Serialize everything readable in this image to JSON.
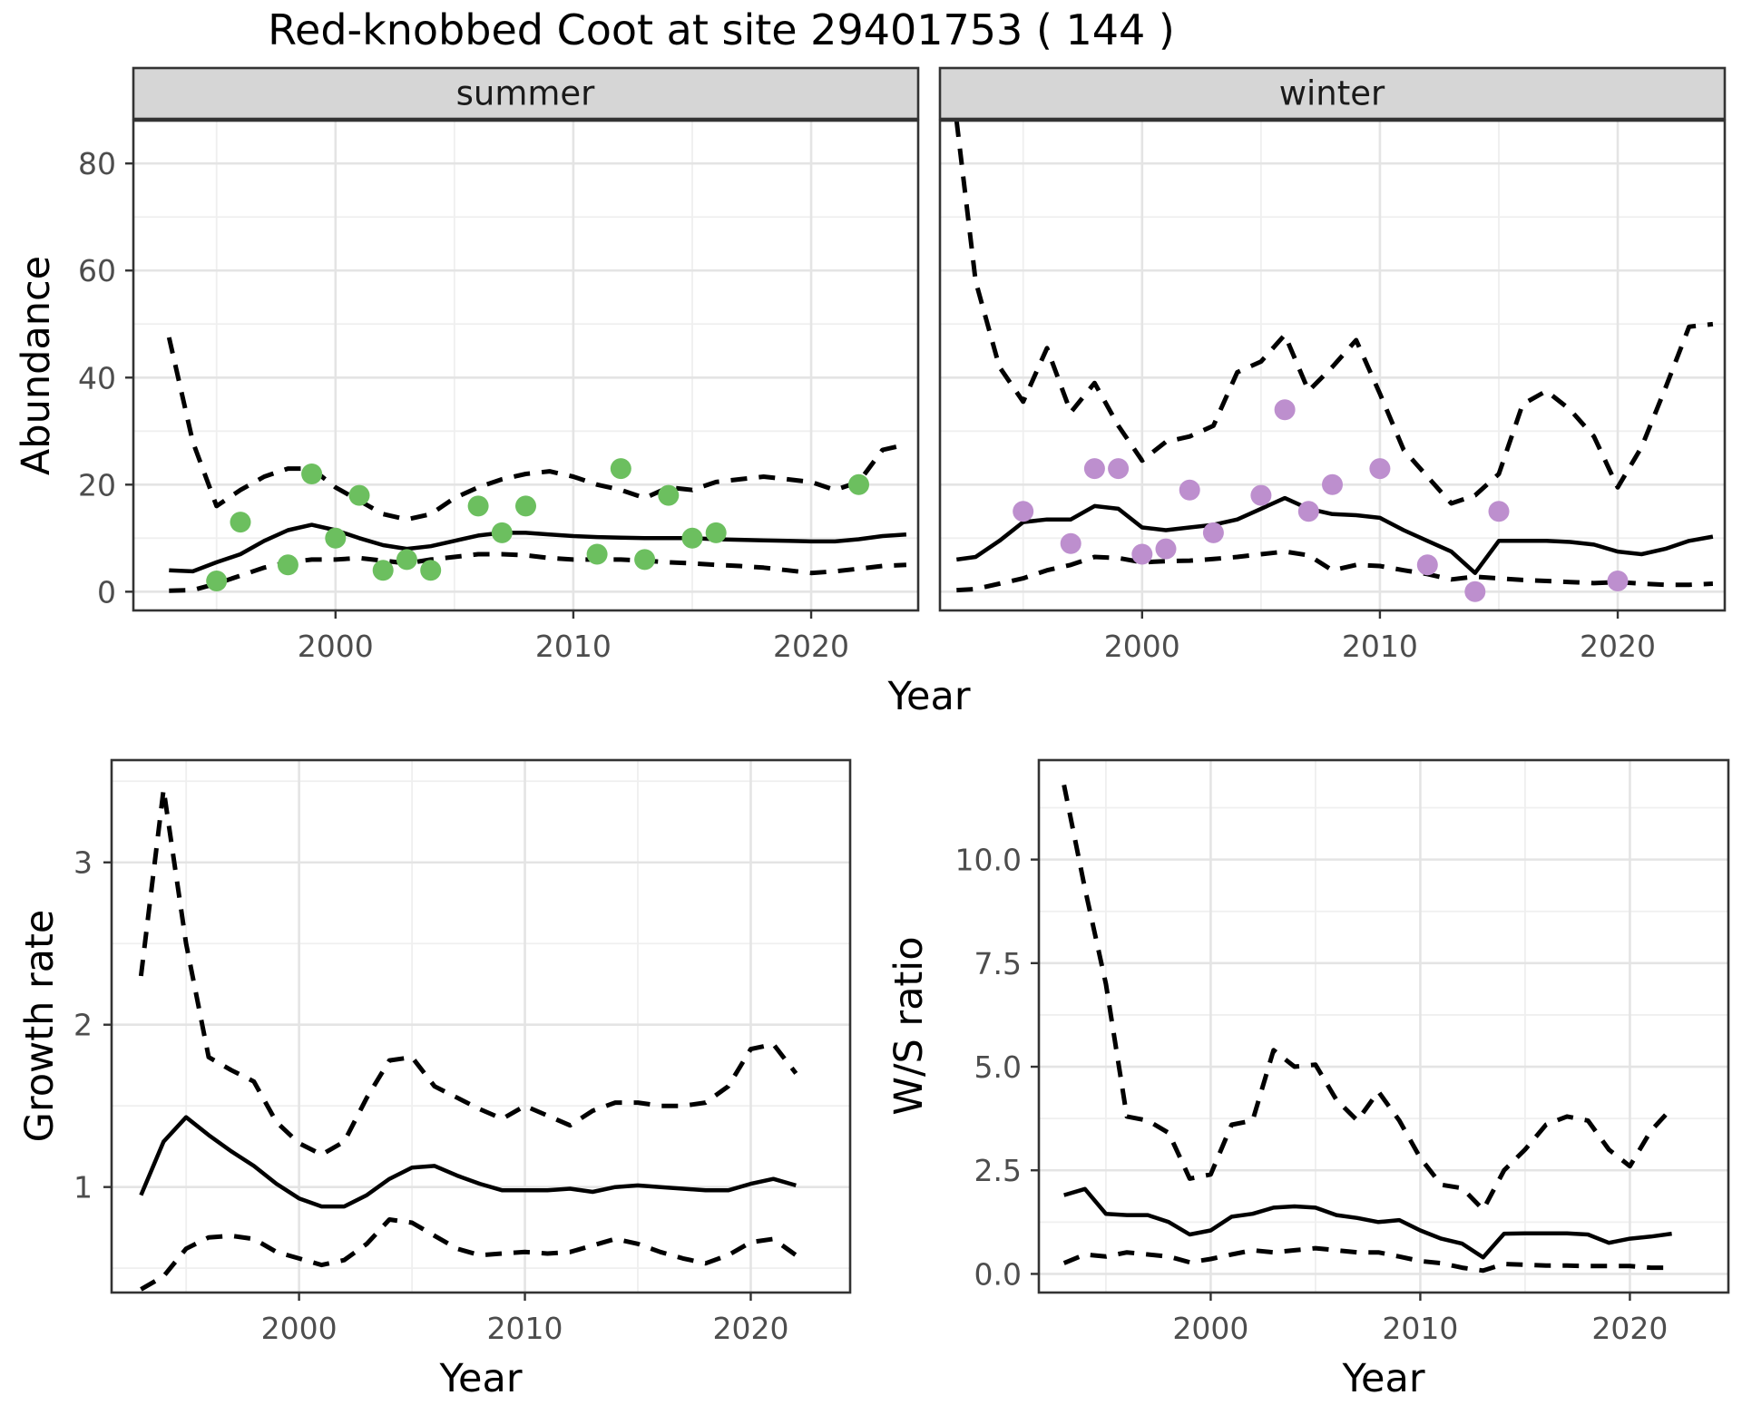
{
  "title": "Red-knobbed Coot at site 29401753 ( 144 )",
  "facets": {
    "summer": "summer",
    "winter": "winter"
  },
  "axes": {
    "abundance_label": "Abundance",
    "year_label": "Year",
    "growth_label": "Growth rate",
    "ws_label": "W/S ratio"
  },
  "colors": {
    "summer_point": "#6cbf5f",
    "winter_point": "#bd8fce",
    "line": "#000000",
    "strip_bg": "#d6d6d6",
    "panel_border": "#333333",
    "grid_major": "#e4e4e4",
    "grid_minor": "#efefef",
    "tick_label": "#4d4d4d"
  },
  "chart_data": [
    {
      "id": "abundance_summer",
      "type": "line",
      "facet": "summer",
      "xlabel": "Year",
      "ylabel": "Abundance",
      "xlim": [
        1991.5,
        2024.5
      ],
      "ylim": [
        -3.5,
        88
      ],
      "xticks": [
        2000,
        2010,
        2020
      ],
      "xtick_labels": [
        "2000",
        "2010",
        "2020"
      ],
      "yticks": [
        0,
        20,
        40,
        60,
        80
      ],
      "ytick_labels": [
        "0",
        "20",
        "40",
        "60",
        "80"
      ],
      "series": [
        {
          "name": "median",
          "style": "solid",
          "x": [
            1993,
            1994,
            1995,
            1996,
            1997,
            1998,
            1999,
            2000,
            2001,
            2002,
            2003,
            2004,
            2005,
            2006,
            2007,
            2008,
            2009,
            2010,
            2011,
            2012,
            2013,
            2014,
            2015,
            2016,
            2017,
            2018,
            2019,
            2020,
            2021,
            2022,
            2023,
            2024
          ],
          "y": [
            4,
            3.8,
            5.5,
            7,
            9.5,
            11.5,
            12.5,
            11.5,
            10,
            8.7,
            8,
            8.5,
            9.5,
            10.5,
            11,
            11,
            10.7,
            10.4,
            10.2,
            10.1,
            10,
            10,
            10,
            9.8,
            9.7,
            9.6,
            9.5,
            9.4,
            9.4,
            9.8,
            10.4,
            10.7
          ]
        },
        {
          "name": "upper_95ci",
          "style": "dashed",
          "x": [
            1993,
            1994,
            1995,
            1996,
            1997,
            1998,
            1999,
            2000,
            2001,
            2002,
            2003,
            2004,
            2005,
            2006,
            2007,
            2008,
            2009,
            2010,
            2011,
            2012,
            2013,
            2014,
            2015,
            2016,
            2017,
            2018,
            2019,
            2020,
            2021,
            2022,
            2023,
            2024
          ],
          "y": [
            47.5,
            28,
            16,
            19,
            21.5,
            23,
            23,
            19.5,
            17,
            14.5,
            13.5,
            14.5,
            17.5,
            19.5,
            21,
            22,
            22.5,
            21.5,
            20,
            19,
            17.5,
            19.5,
            19,
            20.5,
            21,
            21.5,
            21,
            20.5,
            19,
            20.5,
            26.5,
            27.5
          ]
        },
        {
          "name": "lower_95ci",
          "style": "dashed",
          "x": [
            1993,
            1994,
            1995,
            1996,
            1997,
            1998,
            1999,
            2000,
            2001,
            2002,
            2003,
            2004,
            2005,
            2006,
            2007,
            2008,
            2009,
            2010,
            2011,
            2012,
            2013,
            2014,
            2015,
            2016,
            2017,
            2018,
            2019,
            2020,
            2021,
            2022,
            2023,
            2024
          ],
          "y": [
            0.2,
            0.3,
            1.5,
            3,
            4.5,
            5.5,
            6,
            6,
            6.3,
            5.8,
            5.3,
            6,
            6.5,
            7,
            7,
            6.8,
            6.3,
            6,
            6,
            6,
            5.8,
            5.5,
            5.3,
            5,
            4.8,
            4.5,
            4,
            3.5,
            3.8,
            4.3,
            4.8,
            5
          ]
        }
      ],
      "points": {
        "name": "observed_counts",
        "color": "#6cbf5f",
        "x": [
          1995,
          1996,
          1998,
          1999,
          2000,
          2001,
          2002,
          2003,
          2004,
          2006,
          2007,
          2008,
          2011,
          2012,
          2013,
          2014,
          2015,
          2016,
          2022
        ],
        "y": [
          2,
          13,
          5,
          22,
          10,
          18,
          4,
          6,
          4,
          16,
          11,
          16,
          7,
          23,
          6,
          18,
          10,
          11,
          20
        ]
      }
    },
    {
      "id": "abundance_winter",
      "type": "line",
      "facet": "winter",
      "xlabel": "Year",
      "ylabel": "Abundance",
      "xlim": [
        1991.5,
        2024.5
      ],
      "ylim": [
        -3.5,
        88
      ],
      "xticks": [
        2000,
        2010,
        2020
      ],
      "xtick_labels": [
        "2000",
        "2010",
        "2020"
      ],
      "yticks": [
        0,
        20,
        40,
        60,
        80
      ],
      "ytick_labels": [
        "0",
        "20",
        "40",
        "60",
        "80"
      ],
      "series": [
        {
          "name": "median",
          "style": "solid",
          "x": [
            1992.2,
            1993,
            1994,
            1995,
            1996,
            1997,
            1998,
            1999,
            2000,
            2001,
            2002,
            2003,
            2004,
            2005,
            2006,
            2007,
            2008,
            2009,
            2010,
            2011,
            2012,
            2013,
            2014,
            2015,
            2016,
            2017,
            2018,
            2019,
            2020,
            2021,
            2022,
            2023,
            2024
          ],
          "y": [
            6,
            6.5,
            9.5,
            13,
            13.5,
            13.5,
            16,
            15.5,
            12,
            11.5,
            12,
            12.5,
            13.5,
            15.5,
            17.5,
            15.5,
            14.5,
            14.3,
            13.8,
            11.5,
            9.5,
            7.5,
            3.5,
            9.5,
            9.5,
            9.5,
            9.3,
            8.8,
            7.5,
            7,
            8,
            9.5,
            10.3
          ]
        },
        {
          "name": "upper_95ci",
          "style": "dashed",
          "x": [
            1992.2,
            1993,
            1994,
            1995,
            1996,
            1997,
            1998,
            1999,
            2000,
            2001,
            2002,
            2003,
            2004,
            2005,
            2006,
            2007,
            2008,
            2009,
            2010,
            2011,
            2012,
            2013,
            2014,
            2015,
            2016,
            2017,
            2018,
            2019,
            2020,
            2021,
            2022,
            2023,
            2024
          ],
          "y": [
            88,
            58,
            42,
            35.5,
            45.5,
            33.5,
            39,
            31,
            24.5,
            28,
            29,
            31,
            41,
            43,
            48,
            37.5,
            42,
            47,
            37,
            26.5,
            21.5,
            16.5,
            18,
            22,
            35,
            37.5,
            34,
            29,
            19.5,
            27,
            38,
            49.5,
            50
          ]
        },
        {
          "name": "lower_95ci",
          "style": "dashed",
          "x": [
            1992.2,
            1993,
            1994,
            1995,
            1996,
            1997,
            1998,
            1999,
            2000,
            2001,
            2002,
            2003,
            2004,
            2005,
            2006,
            2007,
            2008,
            2009,
            2010,
            2011,
            2012,
            2013,
            2014,
            2015,
            2016,
            2017,
            2018,
            2019,
            2020,
            2021,
            2022,
            2023,
            2024
          ],
          "y": [
            0.3,
            0.5,
            1.5,
            2.5,
            4,
            5,
            6.5,
            6.3,
            5.5,
            5.7,
            5.8,
            6.1,
            6.5,
            7,
            7.5,
            6.8,
            4,
            5,
            4.8,
            4,
            3.3,
            2.3,
            2.8,
            2.5,
            2.2,
            2,
            1.8,
            1.6,
            1.8,
            1.5,
            1.3,
            1.3,
            1.5
          ]
        }
      ],
      "points": {
        "name": "observed_counts",
        "color": "#bd8fce",
        "x": [
          1995,
          1997,
          1998,
          1999,
          2000,
          2001,
          2002,
          2003,
          2005,
          2006,
          2007,
          2008,
          2010,
          2012,
          2014,
          2015,
          2020
        ],
        "y": [
          15,
          9,
          23,
          23,
          7,
          8,
          19,
          11,
          18,
          34,
          15,
          20,
          23,
          5,
          0,
          15,
          2
        ]
      }
    },
    {
      "id": "growth_rate",
      "type": "line",
      "xlabel": "Year",
      "ylabel": "Growth rate",
      "xlim": [
        1991.7,
        2024.4
      ],
      "ylim": [
        0.35,
        3.63
      ],
      "xticks": [
        2000,
        2010,
        2020
      ],
      "xtick_labels": [
        "2000",
        "2010",
        "2020"
      ],
      "yticks": [
        1,
        2,
        3
      ],
      "ytick_labels": [
        "1",
        "2",
        "3"
      ],
      "series": [
        {
          "name": "median",
          "style": "solid",
          "x": [
            1993,
            1994,
            1995,
            1996,
            1997,
            1998,
            1999,
            2000,
            2001,
            2002,
            2003,
            2004,
            2005,
            2006,
            2007,
            2008,
            2009,
            2010,
            2011,
            2012,
            2013,
            2014,
            2015,
            2016,
            2017,
            2018,
            2019,
            2020,
            2021,
            2022
          ],
          "y": [
            0.95,
            1.28,
            1.43,
            1.32,
            1.22,
            1.13,
            1.02,
            0.93,
            0.88,
            0.88,
            0.95,
            1.05,
            1.12,
            1.13,
            1.07,
            1.02,
            0.98,
            0.98,
            0.98,
            0.99,
            0.97,
            1,
            1.01,
            1,
            0.99,
            0.98,
            0.98,
            1.02,
            1.05,
            1.01
          ]
        },
        {
          "name": "upper_95ci",
          "style": "dashed",
          "x": [
            1993,
            1994,
            1995,
            1996,
            1997,
            1998,
            1999,
            2000,
            2001,
            2002,
            2003,
            2004,
            2005,
            2006,
            2007,
            2008,
            2009,
            2010,
            2011,
            2012,
            2013,
            2014,
            2015,
            2016,
            2017,
            2018,
            2019,
            2020,
            2021,
            2022
          ],
          "y": [
            2.3,
            3.45,
            2.5,
            1.8,
            1.72,
            1.65,
            1.4,
            1.27,
            1.2,
            1.28,
            1.55,
            1.78,
            1.8,
            1.62,
            1.55,
            1.48,
            1.42,
            1.5,
            1.44,
            1.38,
            1.47,
            1.52,
            1.52,
            1.5,
            1.5,
            1.52,
            1.62,
            1.85,
            1.88,
            1.7
          ]
        },
        {
          "name": "lower_95ci",
          "style": "dashed",
          "x": [
            1993,
            1994,
            1995,
            1996,
            1997,
            1998,
            1999,
            2000,
            2001,
            2002,
            2003,
            2004,
            2005,
            2006,
            2007,
            2008,
            2009,
            2010,
            2011,
            2012,
            2013,
            2014,
            2015,
            2016,
            2017,
            2018,
            2019,
            2020,
            2021,
            2022
          ],
          "y": [
            0.37,
            0.45,
            0.62,
            0.69,
            0.7,
            0.68,
            0.6,
            0.56,
            0.52,
            0.55,
            0.65,
            0.8,
            0.78,
            0.7,
            0.62,
            0.58,
            0.59,
            0.6,
            0.59,
            0.6,
            0.64,
            0.68,
            0.65,
            0.6,
            0.56,
            0.53,
            0.58,
            0.66,
            0.68,
            0.58
          ]
        }
      ]
    },
    {
      "id": "ws_ratio",
      "type": "line",
      "xlabel": "Year",
      "ylabel": "W/S ratio",
      "xlim": [
        1991.8,
        2024.7
      ],
      "ylim": [
        -0.45,
        12.4
      ],
      "xticks": [
        2000,
        2010,
        2020
      ],
      "xtick_labels": [
        "2000",
        "2010",
        "2020"
      ],
      "yticks": [
        0,
        2.5,
        5,
        7.5,
        10
      ],
      "ytick_labels": [
        "0.0",
        "2.5",
        "5.0",
        "7.5",
        "10.0"
      ],
      "series": [
        {
          "name": "median",
          "style": "solid",
          "x": [
            1993,
            1994,
            1995,
            1996,
            1997,
            1998,
            1999,
            2000,
            2001,
            2002,
            2003,
            2004,
            2005,
            2006,
            2007,
            2008,
            2009,
            2010,
            2011,
            2012,
            2013,
            2014,
            2015,
            2016,
            2017,
            2018,
            2019,
            2020,
            2021,
            2022
          ],
          "y": [
            1.9,
            2.05,
            1.45,
            1.42,
            1.42,
            1.25,
            0.95,
            1.05,
            1.38,
            1.45,
            1.6,
            1.63,
            1.6,
            1.42,
            1.35,
            1.25,
            1.3,
            1.05,
            0.85,
            0.73,
            0.4,
            0.97,
            0.98,
            0.98,
            0.98,
            0.95,
            0.75,
            0.85,
            0.9,
            0.97
          ]
        },
        {
          "name": "upper_95ci",
          "style": "dashed",
          "x": [
            1993,
            1994,
            1995,
            1996,
            1997,
            1998,
            1999,
            2000,
            2001,
            2002,
            2003,
            2004,
            2005,
            2006,
            2007,
            2008,
            2009,
            2010,
            2011,
            2012,
            2013,
            2014,
            2015,
            2016,
            2017,
            2018,
            2019,
            2020,
            2021,
            2022
          ],
          "y": [
            11.8,
            9.3,
            7,
            3.8,
            3.7,
            3.4,
            2.3,
            2.4,
            3.6,
            3.7,
            5.4,
            5,
            5.05,
            4.2,
            3.7,
            4.4,
            3.7,
            2.8,
            2.15,
            2.07,
            1.55,
            2.5,
            3,
            3.6,
            3.8,
            3.7,
            3,
            2.6,
            3.45,
            4
          ]
        },
        {
          "name": "lower_95ci",
          "style": "dashed",
          "x": [
            1993,
            1994,
            1995,
            1996,
            1997,
            1998,
            1999,
            2000,
            2001,
            2002,
            2003,
            2004,
            2005,
            2006,
            2007,
            2008,
            2009,
            2010,
            2011,
            2012,
            2013,
            2014,
            2015,
            2016,
            2017,
            2018,
            2019,
            2020,
            2021,
            2022
          ],
          "y": [
            0.26,
            0.47,
            0.42,
            0.52,
            0.47,
            0.42,
            0.28,
            0.36,
            0.47,
            0.57,
            0.52,
            0.57,
            0.62,
            0.57,
            0.52,
            0.52,
            0.42,
            0.31,
            0.26,
            0.15,
            0.08,
            0.24,
            0.22,
            0.2,
            0.2,
            0.19,
            0.19,
            0.19,
            0.15,
            0.15
          ]
        }
      ]
    }
  ]
}
